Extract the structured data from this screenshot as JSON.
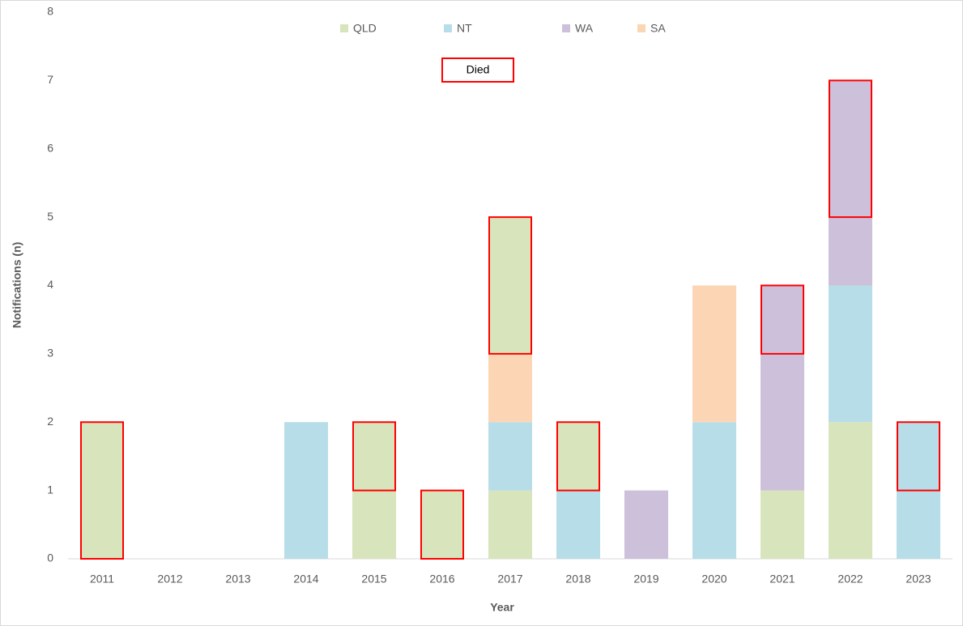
{
  "chart_data": {
    "type": "stacked-bar",
    "x_label": "Year",
    "y_label": "Notifications (n)",
    "categories": [
      "2011",
      "2012",
      "2013",
      "2014",
      "2015",
      "2016",
      "2017",
      "2018",
      "2019",
      "2020",
      "2021",
      "2022",
      "2023"
    ],
    "series": [
      {
        "name": "QLD",
        "color": "#d8e4bc",
        "values": [
          0,
          0,
          0,
          0,
          1,
          0,
          1,
          0,
          0,
          0,
          1,
          2,
          0
        ],
        "died_values": [
          2,
          0,
          0,
          0,
          1,
          1,
          2,
          1,
          0,
          0,
          0,
          0,
          0
        ]
      },
      {
        "name": "NT",
        "color": "#b7dee8",
        "values": [
          0,
          0,
          0,
          2,
          0,
          0,
          1,
          1,
          0,
          2,
          0,
          2,
          1
        ],
        "died_values": [
          0,
          0,
          0,
          0,
          0,
          0,
          0,
          0,
          0,
          0,
          0,
          0,
          1
        ]
      },
      {
        "name": "WA",
        "color": "#ccc0da",
        "values": [
          0,
          0,
          0,
          0,
          0,
          0,
          0,
          0,
          1,
          0,
          2,
          1,
          0
        ],
        "died_values": [
          0,
          0,
          0,
          0,
          0,
          0,
          0,
          0,
          0,
          0,
          1,
          2,
          0
        ]
      },
      {
        "name": "SA",
        "color": "#fcd5b4",
        "values": [
          0,
          0,
          0,
          0,
          0,
          0,
          1,
          0,
          0,
          2,
          0,
          0,
          0
        ],
        "died_values": [
          0,
          0,
          0,
          0,
          0,
          0,
          0,
          0,
          0,
          0,
          0,
          0,
          0
        ]
      }
    ],
    "died_label": "Died",
    "died_color": "#ff0000",
    "ylim": [
      0,
      8
    ],
    "yticks": [
      0,
      1,
      2,
      3,
      4,
      5,
      6,
      7,
      8
    ],
    "legend": "top"
  }
}
